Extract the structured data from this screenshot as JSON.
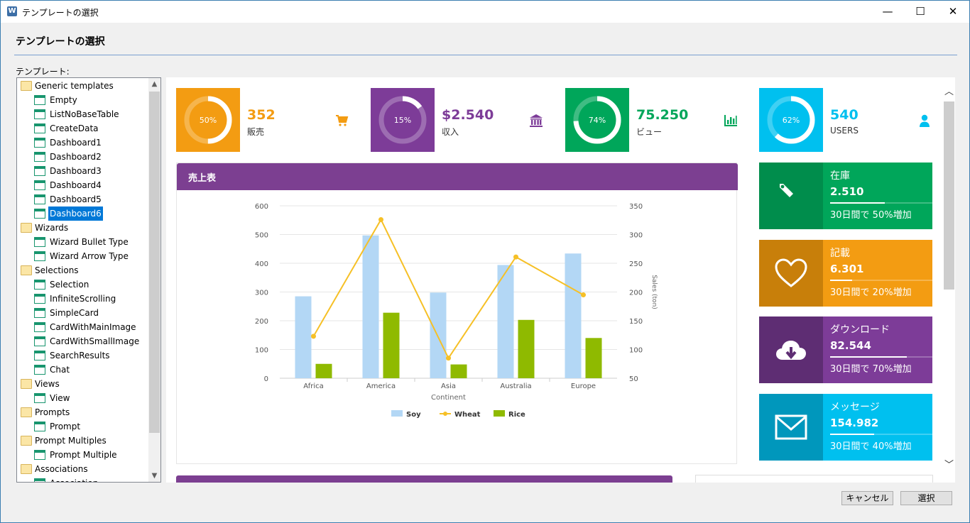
{
  "window": {
    "title": "テンプレートの選択",
    "controls": {
      "minimize": "—",
      "maximize": "☐",
      "close": "✕"
    }
  },
  "heading": "テンプレートの選択",
  "tree": {
    "label": "テンプレート:",
    "items": [
      {
        "type": "folder",
        "label": "Generic templates"
      },
      {
        "type": "leaf",
        "label": "Empty"
      },
      {
        "type": "leaf",
        "label": "ListNoBaseTable"
      },
      {
        "type": "leaf",
        "label": "CreateData"
      },
      {
        "type": "leaf",
        "label": "Dashboard1"
      },
      {
        "type": "leaf",
        "label": "Dashboard2"
      },
      {
        "type": "leaf",
        "label": "Dashboard3"
      },
      {
        "type": "leaf",
        "label": "Dashboard4"
      },
      {
        "type": "leaf",
        "label": "Dashboard5"
      },
      {
        "type": "leaf",
        "label": "Dashboard6",
        "selected": true
      },
      {
        "type": "folder",
        "label": "Wizards"
      },
      {
        "type": "leaf",
        "label": "Wizard Bullet Type"
      },
      {
        "type": "leaf",
        "label": "Wizard Arrow Type"
      },
      {
        "type": "folder",
        "label": "Selections"
      },
      {
        "type": "leaf",
        "label": "Selection"
      },
      {
        "type": "leaf",
        "label": "InfiniteScrolling"
      },
      {
        "type": "leaf",
        "label": "SimpleCard"
      },
      {
        "type": "leaf",
        "label": "CardWithMainImage"
      },
      {
        "type": "leaf",
        "label": "CardWithSmallImage"
      },
      {
        "type": "leaf",
        "label": "SearchResults"
      },
      {
        "type": "leaf",
        "label": "Chat"
      },
      {
        "type": "folder",
        "label": "Views"
      },
      {
        "type": "leaf",
        "label": "View"
      },
      {
        "type": "folder",
        "label": "Prompts"
      },
      {
        "type": "leaf",
        "label": "Prompt"
      },
      {
        "type": "folder",
        "label": "Prompt Multiples"
      },
      {
        "type": "leaf",
        "label": "Prompt Multiple"
      },
      {
        "type": "folder",
        "label": "Associations"
      },
      {
        "type": "leaf",
        "label": "Association"
      }
    ]
  },
  "stats": [
    {
      "percent": 50,
      "percent_label": "50%",
      "value": "352",
      "label": "販売",
      "color": "#f39c12",
      "icon": "cart-icon"
    },
    {
      "percent": 15,
      "percent_label": "15%",
      "value": "$2.540",
      "label": "収入",
      "color": "#7d3c98",
      "icon": "bank-icon"
    },
    {
      "percent": 74,
      "percent_label": "74%",
      "value": "75.250",
      "label": "ビュー",
      "color": "#00a65a",
      "icon": "bar-chart-icon"
    },
    {
      "percent": 62,
      "percent_label": "62%",
      "value": "540",
      "label": "USERS",
      "color": "#00c0ef",
      "icon": "user-icon"
    }
  ],
  "tiles": [
    {
      "name": "在庫",
      "value": "2.510",
      "progress": 0.5,
      "footer": "30日間で 50%増加",
      "color": "#00a65a",
      "dark": "#008d4c",
      "icon": "tag-icon"
    },
    {
      "name": "記載",
      "value": "6.301",
      "progress": 0.2,
      "footer": "30日間で 20%増加",
      "color": "#f39c12",
      "dark": "#c87f0a",
      "icon": "heart-icon"
    },
    {
      "name": "ダウンロード",
      "value": "82.544",
      "progress": 0.7,
      "footer": "30日間で 70%増加",
      "color": "#7d3c98",
      "dark": "#5e2d73",
      "icon": "cloud-download-icon"
    },
    {
      "name": "メッセージ",
      "value": "154.982",
      "progress": 0.4,
      "footer": "30日間で 40%増加",
      "color": "#00c0ef",
      "dark": "#0097bc",
      "icon": "envelope-icon"
    }
  ],
  "chart_card": {
    "title": "売上表",
    "header_color": "#7c3f91"
  },
  "chart_data": {
    "type": "bar",
    "categories": [
      "Africa",
      "America",
      "Asia",
      "Australia",
      "Europe"
    ],
    "xlabel": "Continent",
    "ylabel": "",
    "y2label": "Sales (ton)",
    "ylim": [
      0,
      600
    ],
    "y2lim": [
      50,
      350
    ],
    "yticks": [
      0,
      100,
      200,
      300,
      400,
      500,
      600
    ],
    "y2ticks": [
      50,
      100,
      150,
      200,
      250,
      300,
      350
    ],
    "series": [
      {
        "name": "Soy",
        "type": "bar",
        "axis": "left",
        "color": "#b3d7f5",
        "values": [
          285,
          497,
          298,
          394,
          434
        ]
      },
      {
        "name": "Wheat",
        "type": "line",
        "axis": "right",
        "color": "#f6c026",
        "values": [
          123,
          326,
          85,
          261,
          195
        ]
      },
      {
        "name": "Rice",
        "type": "bar",
        "axis": "left",
        "color": "#8fba00",
        "values": [
          50,
          228,
          48,
          203,
          140
        ]
      }
    ],
    "legend": "bottom-center",
    "grid": true
  },
  "buttons": {
    "cancel": "キャンセル",
    "select": "選択"
  }
}
